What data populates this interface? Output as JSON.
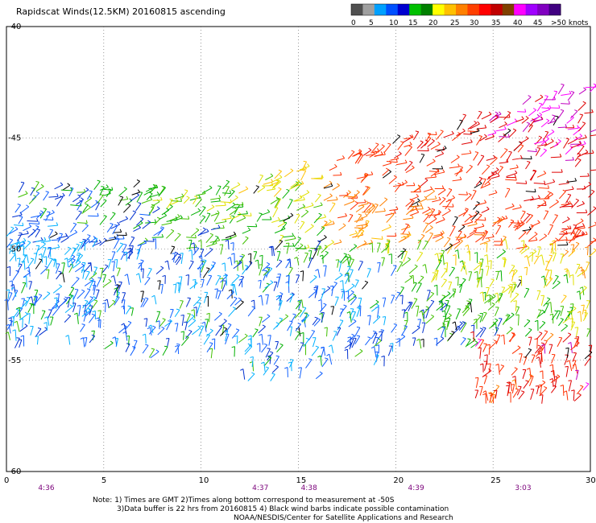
{
  "chart_data": {
    "type": "scatter",
    "title": "Rapidscat Winds(12.5KM) 20160815 ascending",
    "x_axis": {
      "range": [
        0,
        30
      ],
      "ticks": [
        "0",
        "5",
        "10",
        "15",
        "20",
        "25",
        "30"
      ]
    },
    "y_axis": {
      "range": [
        -40,
        -60
      ],
      "ticks": [
        "-40",
        "-45",
        "-50",
        "-55",
        "-60"
      ],
      "grid": "dotted"
    },
    "colorbar": {
      "labels": [
        "0",
        "5",
        "10",
        "15",
        "20",
        "25",
        "30",
        "35",
        "40",
        "45",
        ">50 knots"
      ],
      "colors": [
        "#505050",
        "#a0a0a0",
        "#00a0ff",
        "#0050ff",
        "#0000d0",
        "#00c000",
        "#008000",
        "#ffff00",
        "#ffc000",
        "#ff8000",
        "#ff4000",
        "#ff0000",
        "#c00000",
        "#804000",
        "#ff00ff",
        "#a000ff",
        "#8000c0",
        "#400080"
      ]
    },
    "swath_regions": [
      {
        "speed": "15-20 knots",
        "lon": [
          0,
          16
        ],
        "lat": [
          -47,
          -49
        ]
      },
      {
        "speed": "20-25 knots",
        "lon": [
          0,
          10
        ],
        "lat": [
          -48,
          -50
        ]
      },
      {
        "speed": "10-15 knots",
        "lon": [
          0,
          23
        ],
        "lat": [
          -51,
          -56
        ]
      },
      {
        "speed": "25-35 knots",
        "lon": [
          16,
          30
        ],
        "lat": [
          -45,
          -49
        ]
      },
      {
        "speed": "30-40 knots",
        "lon": [
          23,
          30
        ],
        "lat": [
          -43,
          -46
        ]
      },
      {
        "speed": "20-30 knots",
        "lon": [
          20,
          30
        ],
        "lat": [
          -50,
          -55
        ]
      },
      {
        "speed": "30-40 knots",
        "lon": [
          24,
          30
        ],
        "lat": [
          -54,
          -57
        ]
      }
    ],
    "times": [
      {
        "label": "4:36",
        "x": 2
      },
      {
        "label": "4:37",
        "x": 13
      },
      {
        "label": "4:38",
        "x": 15.5
      },
      {
        "label": "4:39",
        "x": 21
      },
      {
        "label": "3:03",
        "x": 26.5
      }
    ],
    "notes": [
      "Note: 1) Times are GMT 2)Times along bottom correspond to measurement at -50S",
      "3)Data buffer is 22 hrs from 20160815 4) Black wind barbs indicate possible contamination",
      "NOAA/NESDIS/Center for Satellite Applications and Research"
    ]
  }
}
